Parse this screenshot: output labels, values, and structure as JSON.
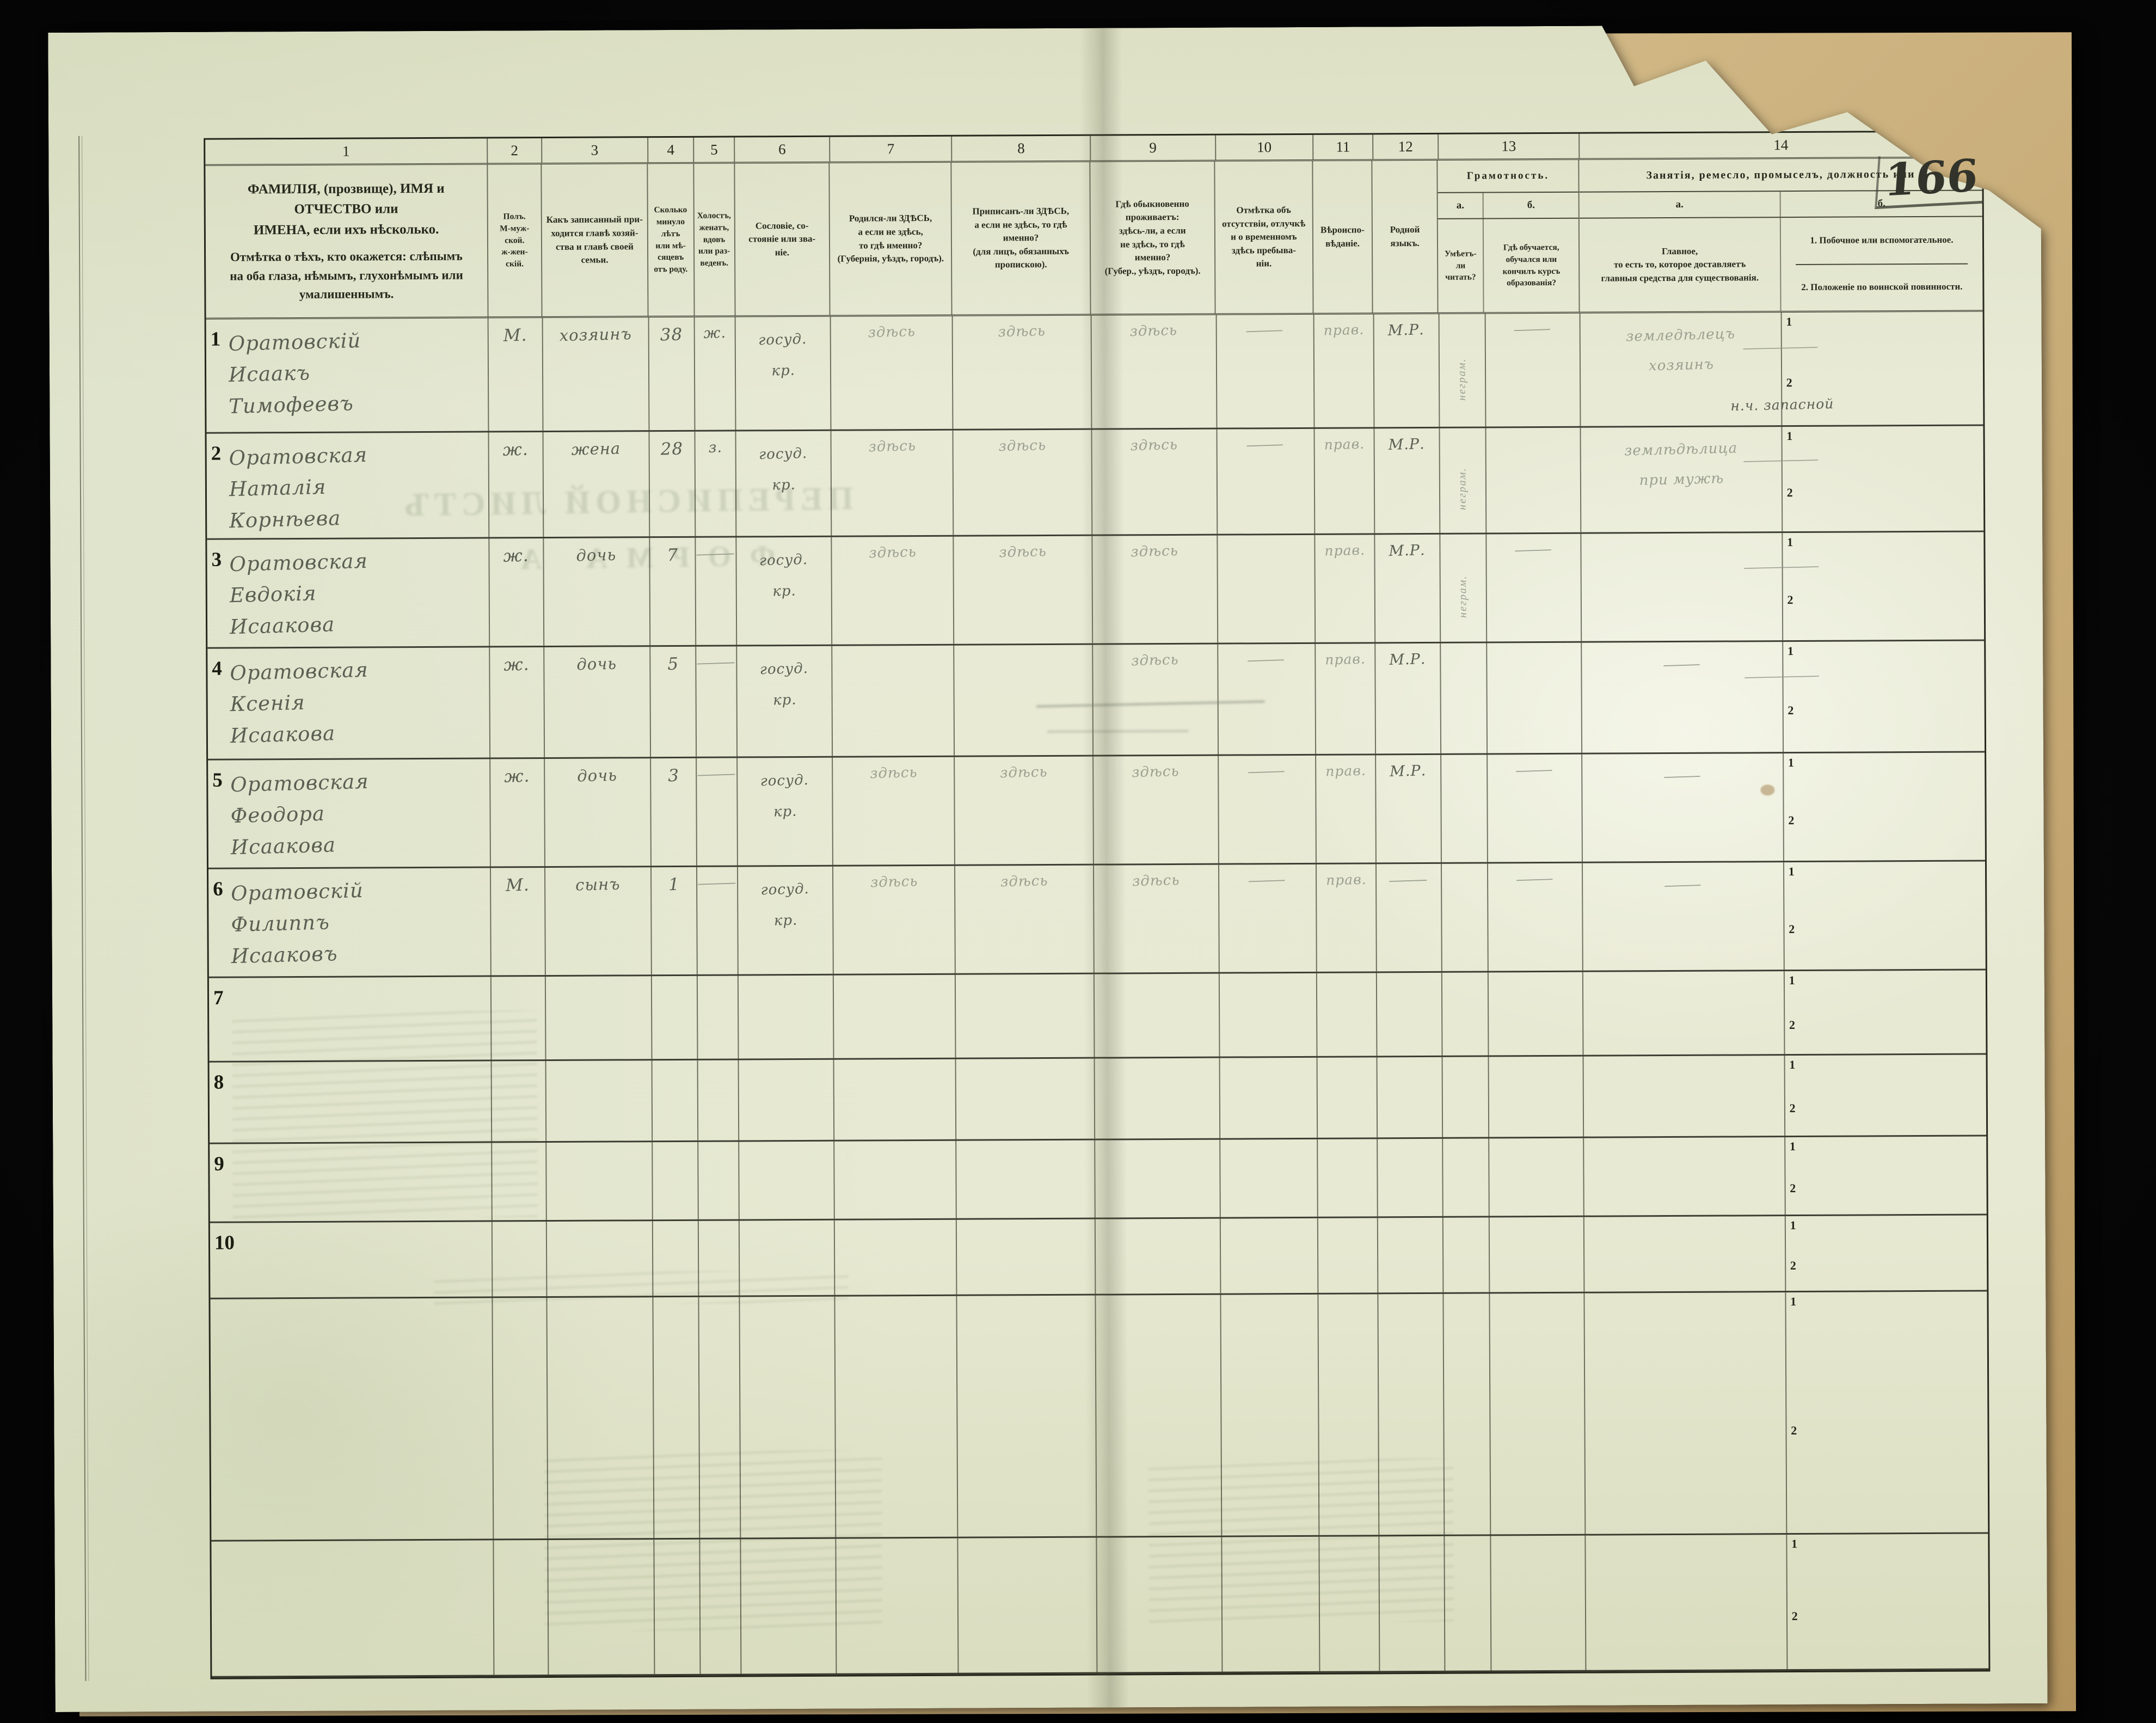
{
  "page": {
    "number": "166"
  },
  "bleedthrough": {
    "line1": "ПЕРЕПИСНОЙ ЛИСТЪ",
    "line2": "ФОРМА А"
  },
  "table": {
    "column_numbers": [
      "1",
      "2",
      "3",
      "4",
      "5",
      "6",
      "7",
      "8",
      "9",
      "10",
      "11",
      "12",
      "13",
      "14"
    ],
    "sub_row_labels": {
      "first": "1",
      "second": "2"
    },
    "columns": {
      "c1a": "ФАМИЛІЯ, (прозвище), ИМЯ и ОТЧЕСТВО или\nИМЕНА, если ихъ нѣсколько.",
      "c1b": "Отмѣтка о тѣхъ, кто окажется: слѣпымъ\nна оба глаза, нѣмымъ, глухонѣмымъ или\nумалишеннымъ.",
      "c2": "Полъ.\nМ-муж-\nской.\nж-жен-\nскій.",
      "c3": "Какъ записанный при-\nходится главѣ хозяй-\nства и главѣ своей\nсемьи.",
      "c4": "Сколько\nминуло\nлѣтъ\nили мѣ-\nсяцевъ\nотъ роду.",
      "c5": "Холостъ,\nженатъ,\nвдовъ\nили раз-\nведенъ.",
      "c6": "Сословіе, со-\nстояніе или зва-\nніе.",
      "c7": "Родился-ли ЗДѢСЬ,\nа если не здѣсь,\nто гдѣ именно?\n(Губернія, уѣздъ, городъ).",
      "c8": "Приписанъ-ли ЗДѢСЬ,\nа если не здѣсь, то гдѣ\nименно?\n(для лицъ, обязанныхъ\nпропискою).",
      "c9": "Гдѣ обыкновенно\nпроживаетъ:\nздѣсь-ли, а если\nне здѣсь, то гдѣ\nименно?\n(Губер., уѣздъ, городъ).",
      "c10": "Отмѣтка объ\nотсутствіи, отлучкѣ\nи о временномъ\nздѣсь пребыва-\nніи.",
      "c11": "Вѣроиспо-\nвѣданіе.",
      "c12": "Родной\nязыкъ.",
      "c13_title": "Грамотность.",
      "c13a_label": "а.",
      "c13b_label": "б.",
      "c13a": "Умѣетъ-\nли\nчитать?",
      "c13b": "Гдѣ обучается,\nобучался или\nкончилъ курсъ\nобразованія?",
      "c14_title": "Занятія, ремесло, промыселъ, должность или",
      "c14a_label": "а.",
      "c14b_label": "б.",
      "c14a": "Главное,\nто есть то, которое доставляетъ\nглавныя средства для существованія.",
      "c14b1": "1. Побочное или вспомогательное.",
      "c14b2": "2. Положеніе по воинской повинности."
    },
    "rows": [
      {
        "num": "1",
        "name": [
          "Оратовскій",
          "Исаакъ",
          "Тимофеевъ"
        ],
        "sex": "М.",
        "relation": "хозяинъ",
        "age": "38",
        "marital": "ж.",
        "estate": [
          "госуд.",
          "кр."
        ],
        "born": "здѣсь",
        "registered": "здѣсь",
        "resides": "здѣсь",
        "absence": "—",
        "religion": "прав.",
        "language": "М.Р.",
        "literacy_a": "неграм.",
        "literacy_b": "—",
        "occupation": [
          "земледѣлецъ",
          "хозяинъ"
        ],
        "side1": "—",
        "side2": "н.ч. запасной"
      },
      {
        "num": "2",
        "name": [
          "Оратовская",
          "Наталія",
          "Корнѣева"
        ],
        "sex": "ж.",
        "relation": "жена",
        "age": "28",
        "marital": "з.",
        "estate": [
          "госуд.",
          "кр."
        ],
        "born": "здѣсь",
        "registered": "здѣсь",
        "resides": "здѣсь",
        "absence": "—",
        "religion": "прав.",
        "language": "М.Р.",
        "literacy_a": "неграм.",
        "literacy_b": "",
        "occupation": [
          "землѣдѣлица",
          "при мужѣ"
        ],
        "side1": "—",
        "side2": ""
      },
      {
        "num": "3",
        "name": [
          "Оратовская",
          "Евдокія",
          "Исаакова"
        ],
        "sex": "ж.",
        "relation": "дочь",
        "age": "7",
        "marital": "—",
        "estate": [
          "госуд.",
          "кр."
        ],
        "born": "здѣсь",
        "registered": "здѣсь",
        "resides": "здѣсь",
        "absence": "",
        "religion": "прав.",
        "language": "М.Р.",
        "literacy_a": "неграм.",
        "literacy_b": "—",
        "occupation": [],
        "side1": "—",
        "side2": ""
      },
      {
        "num": "4",
        "name": [
          "Оратовская",
          "Ксенія",
          "Исаакова"
        ],
        "sex": "ж.",
        "relation": "дочь",
        "age": "5",
        "marital": "—",
        "estate": [
          "госуд.",
          "кр."
        ],
        "born": "",
        "registered": "",
        "resides": "здѣсь",
        "absence": "—",
        "religion": "прав.",
        "language": "М.Р.",
        "literacy_a": "",
        "literacy_b": "",
        "occupation": [
          "—"
        ],
        "side1": "—",
        "side2": ""
      },
      {
        "num": "5",
        "name": [
          "Оратовская",
          "Феодора",
          "Исаакова"
        ],
        "sex": "ж.",
        "relation": "дочь",
        "age": "3",
        "marital": "—",
        "estate": [
          "госуд.",
          "кр."
        ],
        "born": "здѣсь",
        "registered": "здѣсь",
        "resides": "здѣсь",
        "absence": "—",
        "religion": "прав.",
        "language": "М.Р.",
        "literacy_a": "",
        "literacy_b": "—",
        "occupation": [
          "—"
        ],
        "side1": "",
        "side2": ""
      },
      {
        "num": "6",
        "name": [
          "Оратовскій",
          "Филиппъ",
          "Исааковъ"
        ],
        "sex": "М.",
        "relation": "сынъ",
        "age": "1",
        "marital": "—",
        "estate": [
          "госуд.",
          "кр."
        ],
        "born": "здѣсь",
        "registered": "здѣсь",
        "resides": "здѣсь",
        "absence": "—",
        "religion": "прав.",
        "language": "—",
        "literacy_a": "",
        "literacy_b": "—",
        "occupation": [
          "—"
        ],
        "side1": "",
        "side2": ""
      },
      {
        "num": "7",
        "name": [],
        "sex": "",
        "relation": "",
        "age": "",
        "marital": "",
        "estate": [],
        "born": "",
        "registered": "",
        "resides": "",
        "absence": "",
        "religion": "",
        "language": "",
        "literacy_a": "",
        "literacy_b": "",
        "occupation": [],
        "side1": "",
        "side2": ""
      },
      {
        "num": "8",
        "name": [],
        "sex": "",
        "relation": "",
        "age": "",
        "marital": "",
        "estate": [],
        "born": "",
        "registered": "",
        "resides": "",
        "absence": "",
        "religion": "",
        "language": "",
        "literacy_a": "",
        "literacy_b": "",
        "occupation": [],
        "side1": "",
        "side2": ""
      },
      {
        "num": "9",
        "name": [],
        "sex": "",
        "relation": "",
        "age": "",
        "marital": "",
        "estate": [],
        "born": "",
        "registered": "",
        "resides": "",
        "absence": "",
        "religion": "",
        "language": "",
        "literacy_a": "",
        "literacy_b": "",
        "occupation": [],
        "side1": "",
        "side2": ""
      },
      {
        "num": "10",
        "name": [],
        "sex": "",
        "relation": "",
        "age": "",
        "marital": "",
        "estate": [],
        "born": "",
        "registered": "",
        "resides": "",
        "absence": "",
        "religion": "",
        "language": "",
        "literacy_a": "",
        "literacy_b": "",
        "occupation": [],
        "side1": "",
        "side2": ""
      }
    ]
  }
}
